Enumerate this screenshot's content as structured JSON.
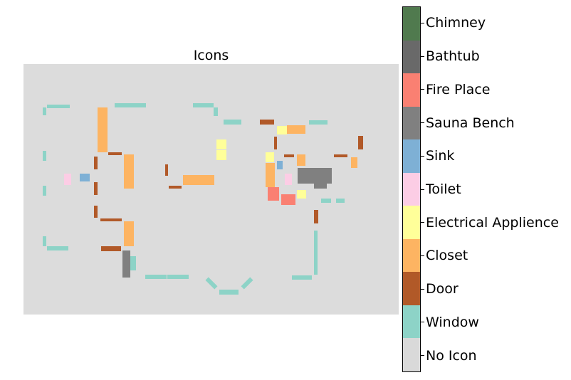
{
  "title": "Icons",
  "background_color": "#dcdcdc",
  "legend": [
    {
      "label": "Chimney",
      "color": "#507a4e"
    },
    {
      "label": "Bathtub",
      "color": "#696969"
    },
    {
      "label": "Fire Place",
      "color": "#fa8072"
    },
    {
      "label": "Sauna Bench",
      "color": "#808080"
    },
    {
      "label": "Sink",
      "color": "#7eb0d5"
    },
    {
      "label": "Toilet",
      "color": "#fccde5"
    },
    {
      "label": "Electrical Applience",
      "color": "#ffff99"
    },
    {
      "label": "Closet",
      "color": "#fdb462"
    },
    {
      "label": "Door",
      "color": "#b15928"
    },
    {
      "label": "Window",
      "color": "#8dd3c7"
    },
    {
      "label": "No Icon",
      "color": "#d9d9d9"
    }
  ]
}
